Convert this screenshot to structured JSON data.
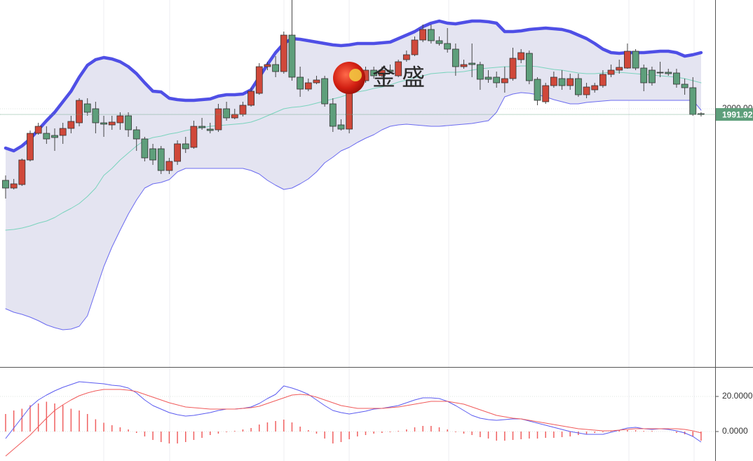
{
  "watermark": "金 盛",
  "chart_data": [
    {
      "type": "candlestick",
      "ylim": [
        1632,
        2155
      ],
      "yticks": [
        {
          "value": 2000,
          "label": "2000.00"
        }
      ],
      "up_color": "#d0483a",
      "down_color": "#5e9f7b",
      "band_fill": "#e4e4f1",
      "open": [
        1898,
        1887,
        1892,
        1927,
        1965,
        1965,
        1962,
        1962,
        1972,
        1980,
        2007,
        2000,
        1980,
        1977,
        1980,
        1990,
        1970,
        1957,
        1943,
        1943,
        1912,
        1925,
        1950,
        1945,
        1975,
        1971,
        1970,
        2000,
        1987,
        1992,
        2005,
        2022,
        2060,
        2063,
        2053,
        2105,
        2045,
        2028,
        2037,
        2043,
        2007,
        1977,
        1971,
        2052,
        2040,
        2055,
        2047,
        2055,
        2047,
        2070,
        2077,
        2098,
        2113,
        2097,
        2093,
        2085,
        2060,
        2065,
        2063,
        2045,
        2045,
        2037,
        2043,
        2070,
        2079,
        2042,
        2010,
        2033,
        2043,
        2033,
        2043,
        2020,
        2027,
        2033,
        2049,
        2055,
        2058,
        2082,
        2058,
        2055,
        2052,
        2052,
        2051,
        2035,
        2030,
        1993
      ],
      "high": [
        1905,
        1900,
        1929,
        1969,
        1980,
        1975,
        1972,
        1980,
        1990,
        2015,
        2015,
        2010,
        1990,
        1990,
        1995,
        1995,
        1975,
        1960,
        1950,
        1947,
        1930,
        1955,
        1960,
        1983,
        1987,
        1980,
        2007,
        2010,
        2000,
        2010,
        2030,
        2065,
        2067,
        2075,
        2110,
        2155,
        2060,
        2043,
        2047,
        2047,
        2015,
        1985,
        2060,
        2063,
        2060,
        2060,
        2060,
        2063,
        2070,
        2083,
        2103,
        2120,
        2120,
        2103,
        2115,
        2093,
        2070,
        2093,
        2067,
        2055,
        2053,
        2060,
        2087,
        2085,
        2083,
        2045,
        2037,
        2053,
        2055,
        2050,
        2050,
        2037,
        2037,
        2055,
        2063,
        2070,
        2093,
        2085,
        2063,
        2060,
        2067,
        2057,
        2057,
        2043,
        2045,
        1995
      ],
      "low": [
        1872,
        1885,
        1890,
        1925,
        1963,
        1950,
        1940,
        1950,
        1965,
        1975,
        1990,
        1965,
        1960,
        1970,
        1970,
        1960,
        1940,
        1925,
        1920,
        1907,
        1907,
        1920,
        1937,
        1943,
        1970,
        1965,
        1967,
        1983,
        1985,
        1989,
        2003,
        2020,
        2055,
        2045,
        2050,
        2040,
        2017,
        2025,
        2035,
        2003,
        1967,
        1969,
        1965,
        2030,
        2037,
        2043,
        2045,
        2050,
        2045,
        2067,
        2075,
        2095,
        2093,
        2090,
        2080,
        2047,
        2057,
        2045,
        2027,
        2037,
        2030,
        2023,
        2040,
        2065,
        2035,
        2005,
        2007,
        2030,
        2027,
        2027,
        2017,
        2015,
        2023,
        2030,
        2045,
        2050,
        2057,
        2055,
        2025,
        2033,
        2045,
        2047,
        2030,
        2020,
        1990,
        1989
      ],
      "close": [
        1887,
        1893,
        1927,
        1965,
        1975,
        1957,
        1959,
        1972,
        1982,
        2012,
        1995,
        1980,
        1978,
        1981,
        1990,
        1970,
        1957,
        1930,
        1927,
        1912,
        1925,
        1950,
        1943,
        1975,
        1973,
        1969,
        2000,
        1987,
        1992,
        2005,
        2025,
        2060,
        2063,
        2053,
        2105,
        2045,
        2028,
        2037,
        2041,
        2007,
        1975,
        1971,
        2052,
        2040,
        2055,
        2047,
        2055,
        2053,
        2067,
        2077,
        2098,
        2113,
        2097,
        2093,
        2085,
        2060,
        2063,
        2063,
        2042,
        2042,
        2037,
        2043,
        2072,
        2080,
        2040,
        2012,
        2033,
        2045,
        2033,
        2043,
        2020,
        2031,
        2033,
        2049,
        2055,
        2059,
        2082,
        2058,
        2037,
        2037,
        2051,
        2050,
        2035,
        2030,
        1992,
        1991.92
      ],
      "series": [
        {
          "color": "#4f4fe6",
          "values": [
            1944,
            1940,
            1947,
            1957,
            1970,
            1983,
            1995,
            2010,
            2025,
            2045,
            2062,
            2070,
            2073,
            2071,
            2067,
            2060,
            2050,
            2037,
            2025,
            2024,
            2015,
            2013,
            2012,
            2012,
            2013,
            2014,
            2018,
            2020,
            2020,
            2021,
            2027,
            2045,
            2063,
            2080,
            2093,
            2100,
            2099,
            2097,
            2095,
            2093,
            2091,
            2090,
            2091,
            2093,
            2093,
            2093,
            2094,
            2095,
            2100,
            2105,
            2110,
            2117,
            2122,
            2125,
            2122,
            2121,
            2123,
            2125,
            2125,
            2124,
            2122,
            2110,
            2110,
            2111,
            2113,
            2114,
            2115,
            2114,
            2113,
            2110,
            2105,
            2100,
            2093,
            2085,
            2080,
            2079,
            2080,
            2080,
            2080,
            2081,
            2082,
            2082,
            2080,
            2075,
            2077,
            2080
          ]
        },
        {
          "color": "#7ad3bd",
          "values": [
            1827,
            1828,
            1830,
            1833,
            1837,
            1840,
            1845,
            1852,
            1858,
            1865,
            1875,
            1887,
            1905,
            1915,
            1927,
            1937,
            1947,
            1955,
            1959,
            1961,
            1964,
            1966,
            1969,
            1971,
            1973,
            1975,
            1976,
            1977,
            1978,
            1979,
            1981,
            1985,
            1990,
            1995,
            2000,
            2002,
            2003,
            2005,
            2008,
            2011,
            2014,
            2017,
            2021,
            2024,
            2026,
            2029,
            2031,
            2034,
            2038,
            2041,
            2044,
            2047,
            2050,
            2051,
            2052,
            2052,
            2053,
            2055,
            2057,
            2058,
            2059,
            2060,
            2060,
            2061,
            2061,
            2060,
            2058,
            2056,
            2055,
            2053,
            2051,
            2050,
            2050,
            2051,
            2052,
            2052,
            2051,
            2050,
            2049,
            2048,
            2047,
            2046,
            2045,
            2043,
            2040,
            2037
          ]
        },
        {
          "color": "#6b6bf0",
          "values": [
            1715,
            1710,
            1707,
            1703,
            1698,
            1692,
            1688,
            1685,
            1686,
            1690,
            1705,
            1740,
            1775,
            1803,
            1827,
            1850,
            1870,
            1887,
            1893,
            1895,
            1899,
            1910,
            1915,
            1915,
            1915,
            1915,
            1915,
            1915,
            1915,
            1915,
            1912,
            1907,
            1898,
            1891,
            1885,
            1887,
            1893,
            1900,
            1910,
            1923,
            1931,
            1940,
            1945,
            1952,
            1958,
            1963,
            1970,
            1975,
            1977,
            1978,
            1977,
            1976,
            1975,
            1975,
            1976,
            1977,
            1978,
            1979,
            1981,
            1983,
            1995,
            2017,
            2021,
            2023,
            2022,
            2020,
            2017,
            2013,
            2010,
            2007,
            2007,
            2009,
            2010,
            2011,
            2012,
            2012,
            2012,
            2012,
            2012,
            2012,
            2012,
            2012,
            2012,
            2012,
            2012,
            1998
          ]
        }
      ]
    },
    {
      "type": "macd",
      "ylim": [
        -16.8,
        36.4
      ],
      "yticks": [
        {
          "value": 20,
          "label": "20.0000"
        },
        {
          "value": 0,
          "label": "0.0000"
        }
      ],
      "series": [
        {
          "color": "#5b5bf0",
          "values": [
            -4,
            2,
            8,
            14,
            18,
            20.8,
            23.2,
            25.2,
            26.8,
            28.4,
            28,
            27.6,
            27.2,
            26.4,
            26,
            24.8,
            22,
            18,
            14.8,
            12.8,
            10.8,
            9.6,
            8.8,
            9.2,
            10,
            10.8,
            12,
            12.8,
            12.8,
            13.2,
            14,
            16,
            18.8,
            21.2,
            26,
            24.8,
            23.2,
            21.2,
            18,
            14.8,
            12,
            10.8,
            10,
            10.8,
            11.6,
            12.8,
            13.2,
            14,
            14.8,
            16.4,
            18,
            19.2,
            19.2,
            18.8,
            17.2,
            14.8,
            12,
            9.2,
            7.6,
            6.8,
            6.4,
            6.8,
            7.2,
            7.2,
            6,
            4.8,
            3.6,
            2.4,
            1.2,
            0,
            -0.8,
            -1.6,
            -1.6,
            -1.6,
            -0.4,
            0.8,
            2,
            2.4,
            1.6,
            1.2,
            1.6,
            1.2,
            0.4,
            -0.8,
            -2.8,
            -6
          ]
        },
        {
          "color": "#f05a5a",
          "values": [
            -14,
            -10,
            -6,
            -2,
            2.8,
            7.6,
            12,
            15.2,
            18,
            20.4,
            22,
            23.2,
            24,
            24,
            24,
            23.6,
            22.8,
            21.2,
            19.6,
            18,
            16.4,
            15.2,
            14,
            13.6,
            13.2,
            12.8,
            12.8,
            12.8,
            12.8,
            13.2,
            13.6,
            14.4,
            16,
            17.6,
            19.2,
            20.8,
            21.2,
            20.8,
            19.6,
            18,
            16.4,
            14.8,
            14,
            13.2,
            13.2,
            13.2,
            13.2,
            13.6,
            14,
            14.8,
            15.6,
            16.4,
            17.2,
            17.2,
            17.2,
            16.4,
            15.6,
            14,
            12.4,
            10.8,
            9.2,
            8.4,
            7.6,
            7.2,
            6.4,
            5.6,
            4.8,
            4,
            3.2,
            2.4,
            1.6,
            1.2,
            0.8,
            0.4,
            0.4,
            0.8,
            1.2,
            1.6,
            1.6,
            1.6,
            1.6,
            1.6,
            1.6,
            1.2,
            0.4,
            -0.8
          ]
        }
      ],
      "histogram": {
        "color": "#f06060",
        "values": [
          10,
          12,
          13,
          15,
          16,
          17,
          16,
          15,
          13,
          12,
          10,
          7,
          5,
          3.6,
          2.4,
          1.2,
          -0.8,
          -2.8,
          -4.8,
          -6,
          -6.8,
          -6.8,
          -6,
          -4.8,
          -3.6,
          -2,
          -1.2,
          -0.4,
          0.4,
          1.2,
          2,
          4,
          5.2,
          6,
          6.8,
          5.2,
          2.8,
          0.8,
          -1.2,
          -4,
          -6.8,
          -6,
          -4.4,
          -2.8,
          -2,
          -1.2,
          -0.8,
          -0.4,
          0.4,
          1.2,
          2.4,
          3.2,
          3.2,
          2.4,
          1.2,
          -0.4,
          -1.2,
          -2,
          -3.2,
          -4,
          -5.2,
          -5.2,
          -4.8,
          -4.4,
          -4,
          -4,
          -3.6,
          -3.6,
          -3.2,
          -2.8,
          -2,
          -1.6,
          -0.8,
          -0.4,
          0.4,
          0.8,
          0.8,
          0.8,
          0.4,
          0.4,
          0,
          0,
          -0.8,
          -1.6,
          -2.8,
          -5.2
        ]
      }
    }
  ]
}
